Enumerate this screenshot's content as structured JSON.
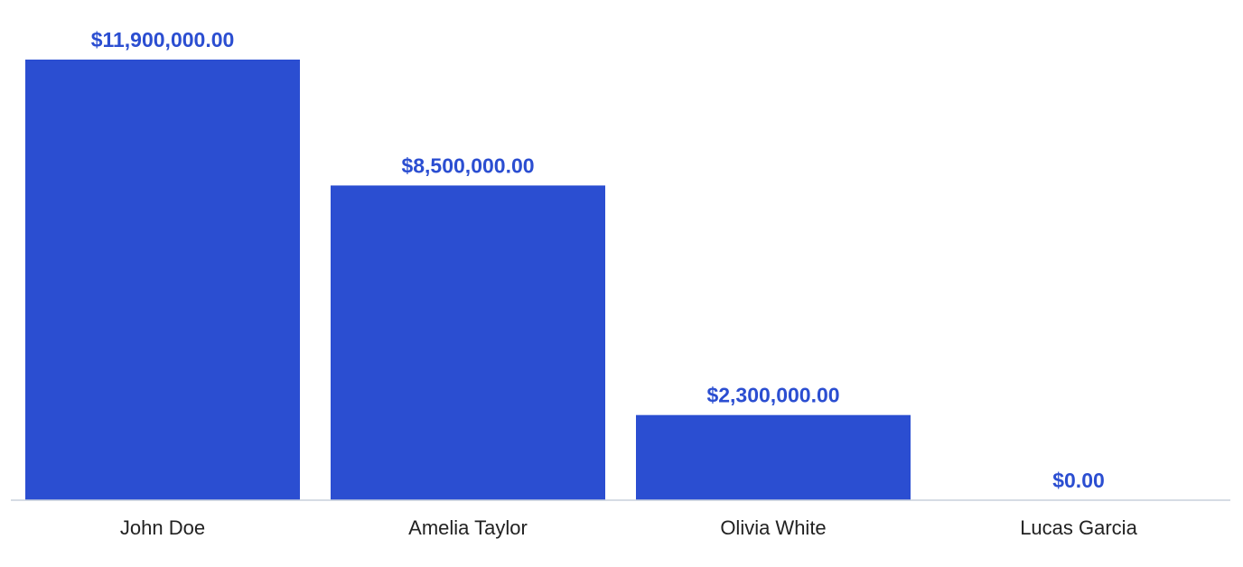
{
  "chart_data": {
    "type": "bar",
    "categories": [
      "John Doe",
      "Amelia Taylor",
      "Olivia White",
      "Lucas Garcia"
    ],
    "values": [
      11900000,
      8500000,
      2300000,
      0
    ],
    "value_labels": [
      "$11,900,000.00",
      "$8,500,000.00",
      "$2,300,000.00",
      "$0.00"
    ],
    "title": "",
    "xlabel": "",
    "ylabel": "",
    "ylim": [
      0,
      11900000
    ],
    "grid": false,
    "legend": "none",
    "bar_color": "#2b4ed1",
    "label_color": "#2b4ed1",
    "axis_color": "#c9d0dc"
  }
}
